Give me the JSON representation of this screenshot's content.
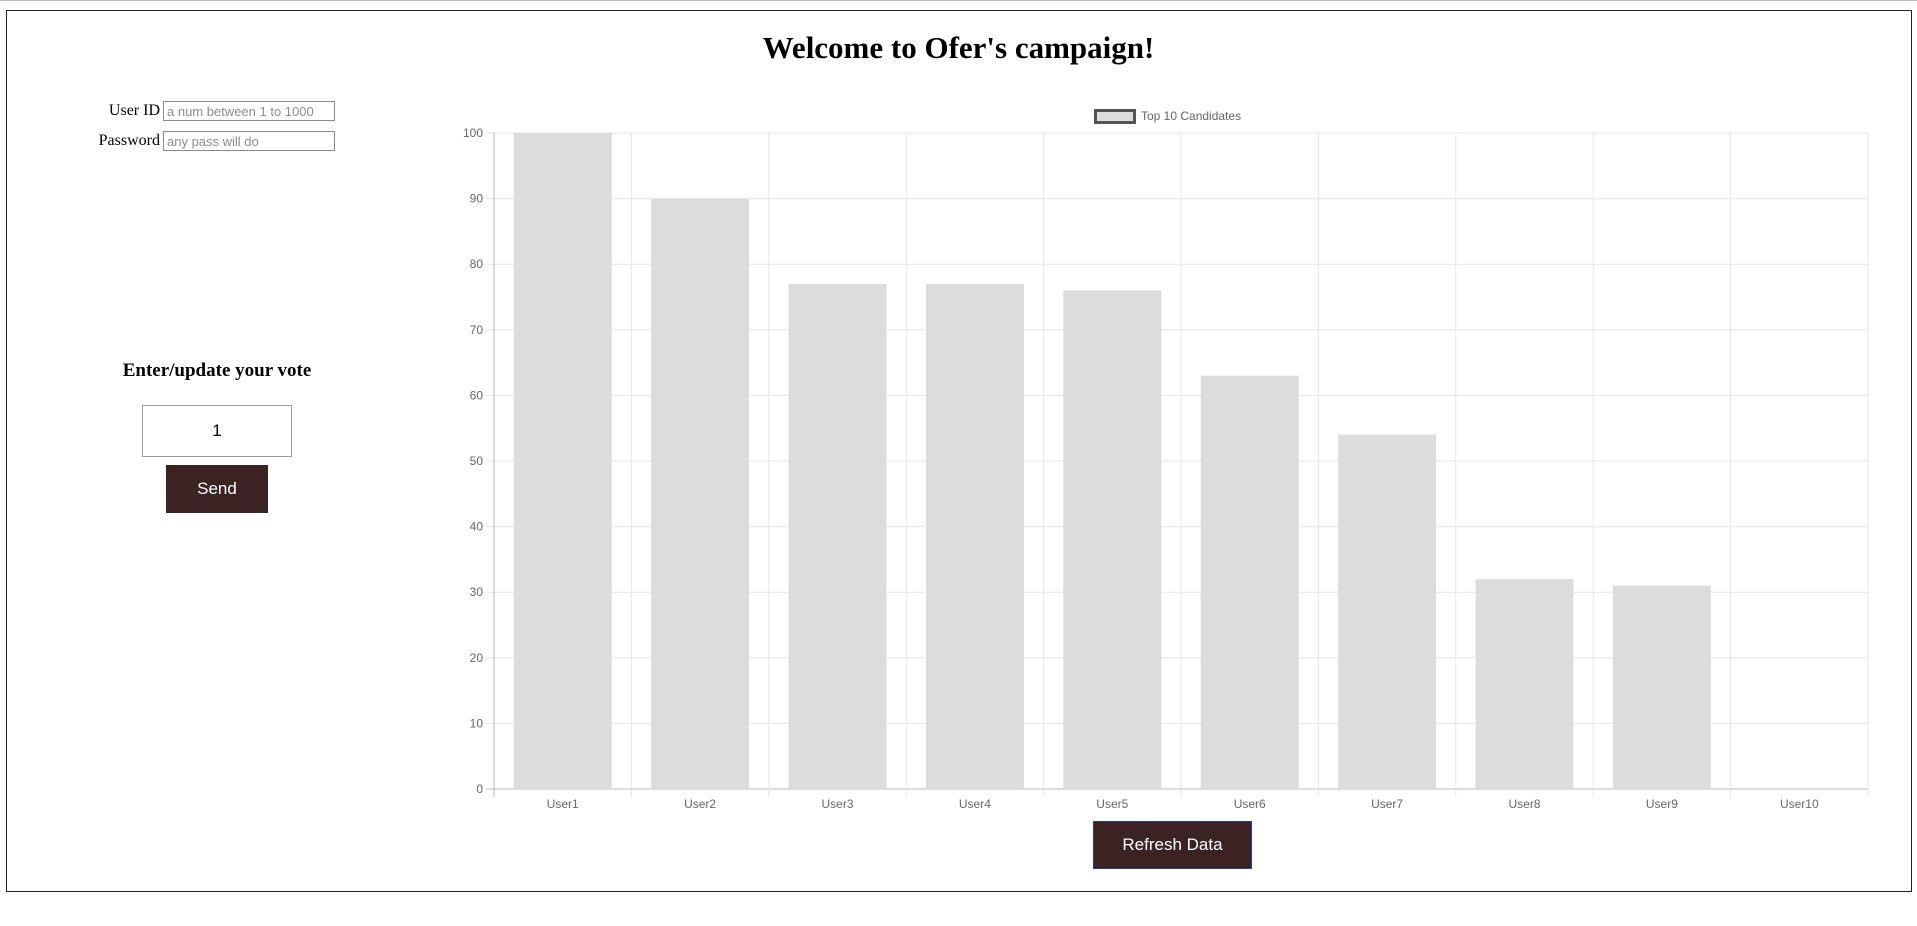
{
  "header": {
    "title": "Welcome to Ofer's campaign!"
  },
  "login": {
    "user_id_label": "User ID",
    "user_id_placeholder": "a num between 1 to 1000",
    "password_label": "Password",
    "password_placeholder": "any pass will do"
  },
  "vote": {
    "heading": "Enter/update your vote",
    "value": "1",
    "send_label": "Send"
  },
  "refresh_label": "Refresh Data",
  "colors": {
    "button_bg": "#3b2324",
    "bar_fill": "#dcdcdd",
    "grid": "#e6e6e6"
  },
  "chart_data": {
    "type": "bar",
    "legend": "Top 10 Candidates",
    "legend_position": "top",
    "categories": [
      "User1",
      "User2",
      "User3",
      "User4",
      "User5",
      "User6",
      "User7",
      "User8",
      "User9",
      "User10"
    ],
    "series": [
      {
        "name": "Top 10 Candidates",
        "values": [
          100,
          90,
          77,
          77,
          76,
          63,
          54,
          32,
          31,
          0
        ]
      }
    ],
    "ylim": [
      0,
      100
    ],
    "yticks": [
      0,
      10,
      20,
      30,
      40,
      50,
      60,
      70,
      80,
      90,
      100
    ],
    "grid": true
  }
}
